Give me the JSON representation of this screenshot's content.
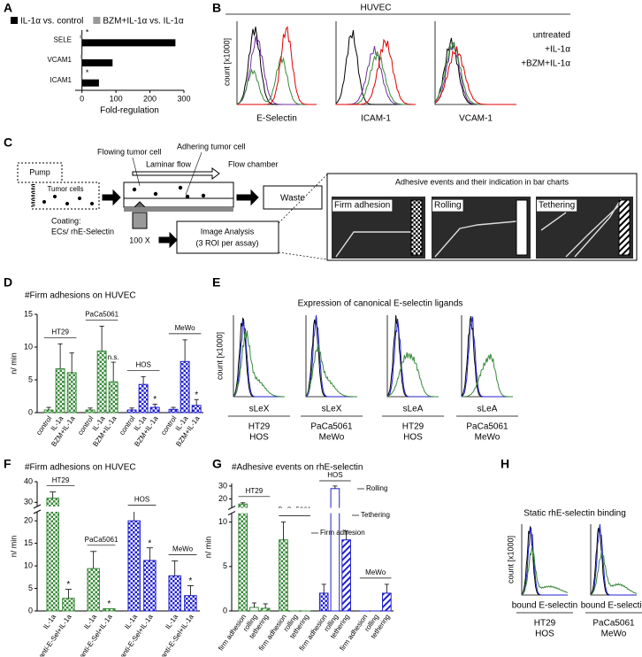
{
  "panel_labels": [
    "A",
    "B",
    "C",
    "D",
    "E",
    "F",
    "G",
    "H"
  ],
  "chart_data": [
    {
      "type": "hbar",
      "xlabel": "Fold-regulation",
      "xlim": [
        -20,
        300
      ],
      "xticks": [
        0,
        100,
        200,
        300
      ],
      "categories": [
        "SELE",
        "VCAM1",
        "ICAM1"
      ],
      "series": [
        {
          "name": "IL-1α vs. control",
          "color": "#000000",
          "values": [
            275,
            90,
            50
          ]
        },
        {
          "name": "BZM+IL-1α vs. IL-1α",
          "color": "#999999",
          "values": [
            -6,
            -4,
            -3
          ],
          "markers": [
            "*",
            null,
            "*"
          ]
        }
      ]
    },
    {
      "type": "grouped_bar",
      "title": "#Firm adhesions on HUVEC",
      "ylabel": "n/ min",
      "ylim": [
        0,
        15
      ],
      "yticks": [
        0,
        5,
        10,
        15
      ],
      "series": [
        {
          "name": "HT29",
          "color": "#3a8a3a",
          "categories": [
            "control",
            "IL-1a",
            "BZM+IL-1a"
          ],
          "values": [
            0.4,
            6.7,
            6.1
          ],
          "errors": [
            0.4,
            3.8,
            3.0
          ],
          "markers": [
            null,
            null,
            null
          ],
          "patterns": [
            "checker",
            "checker",
            "checker"
          ]
        },
        {
          "name": "PaCa5061",
          "color": "#3a8a3a",
          "categories": [
            "control",
            "IL-1a",
            "BZM+IL-1a"
          ],
          "values": [
            0.4,
            9.4,
            4.7
          ],
          "errors": [
            0.3,
            3.8,
            3.0
          ],
          "markers": [
            null,
            null,
            "n.s."
          ],
          "patterns": [
            "checker",
            "checker",
            "checker"
          ]
        },
        {
          "name": "HOS",
          "color": "#2020d0",
          "categories": [
            "control",
            "IL-1a",
            "BZM+IL-1a"
          ],
          "values": [
            0.4,
            4.3,
            0.8
          ],
          "errors": [
            0.3,
            1.2,
            0.5
          ],
          "markers": [
            null,
            null,
            "*"
          ],
          "patterns": [
            "checker",
            "checker",
            "checker"
          ]
        },
        {
          "name": "MeWo",
          "color": "#2020d0",
          "categories": [
            "control",
            "IL-1a",
            "BZM+IL-1a"
          ],
          "values": [
            0.5,
            7.8,
            1.1
          ],
          "errors": [
            0.3,
            3.3,
            0.9
          ],
          "markers": [
            null,
            null,
            "*"
          ],
          "patterns": [
            "checker",
            "checker",
            "checker"
          ]
        }
      ]
    },
    {
      "type": "grouped_bar",
      "title": "#Firm adhesions on HUVEC",
      "ylabel": "n/ min",
      "ylim": [
        0,
        40
      ],
      "ybreak": [
        22,
        28
      ],
      "yticks": [
        0,
        5,
        10,
        15,
        20,
        30,
        40
      ],
      "series": [
        {
          "name": "HT29",
          "color": "#3a8a3a",
          "categories": [
            "IL-1a",
            "anti-E-Sel+IL-1a"
          ],
          "values": [
            32,
            2.8
          ],
          "errors": [
            3,
            2
          ],
          "markers": [
            null,
            "*"
          ],
          "patterns": [
            "checker",
            "checker"
          ]
        },
        {
          "name": "PaCa5061",
          "color": "#3a8a3a",
          "categories": [
            "IL-1a",
            "anti-E-Sel+IL-1a"
          ],
          "values": [
            9.4,
            0.5
          ],
          "errors": [
            3.8,
            0
          ],
          "markers": [
            null,
            "*"
          ],
          "patterns": [
            "checker",
            "checker"
          ]
        },
        {
          "name": "HOS",
          "color": "#2020d0",
          "categories": [
            "IL-1a",
            "anti-E-Sel+IL-1a"
          ],
          "values": [
            20,
            11.2
          ],
          "errors": [
            2.6,
            2.8
          ],
          "markers": [
            null,
            "*"
          ],
          "patterns": [
            "checker",
            "checker"
          ]
        },
        {
          "name": "MeWo",
          "color": "#2020d0",
          "categories": [
            "IL-1a",
            "anti-E-Sel+IL-1a"
          ],
          "values": [
            7.8,
            3.4
          ],
          "errors": [
            3.3,
            2.2
          ],
          "markers": [
            null,
            "*"
          ],
          "patterns": [
            "checker",
            "checker"
          ]
        }
      ]
    },
    {
      "type": "grouped_bar",
      "title": "#Adhesive events on rhE-selectin",
      "ylabel": "n/ min",
      "ylim": [
        0,
        32
      ],
      "ybreak": [
        11,
        13
      ],
      "yticks": [
        0,
        5,
        10,
        20,
        30
      ],
      "annotations": [
        "Firm adhesion",
        "Rolling",
        "Tethering"
      ],
      "series": [
        {
          "name": "HT29",
          "color": "#3a8a3a",
          "categories": [
            "firm adhesion",
            "rolling",
            "tethering"
          ],
          "values": [
            16,
            0.4,
            0.3
          ],
          "errors": [
            1,
            0.5,
            0.5
          ],
          "patterns": [
            "checker",
            "none",
            "hatch"
          ]
        },
        {
          "name": "PaCa5061",
          "color": "#3a8a3a",
          "categories": [
            "firm adhesion",
            "rolling",
            "tethering"
          ],
          "values": [
            8,
            0,
            0
          ],
          "errors": [
            2,
            0,
            0
          ],
          "patterns": [
            "checker",
            "none",
            "hatch"
          ]
        },
        {
          "name": "HOS",
          "color": "#2020d0",
          "categories": [
            "firm adhesion",
            "rolling",
            "tethering"
          ],
          "values": [
            2,
            28,
            8
          ],
          "errors": [
            1,
            2,
            1
          ],
          "patterns": [
            "checker",
            "none",
            "hatch"
          ]
        },
        {
          "name": "MeWo",
          "color": "#2020d0",
          "categories": [
            "firm adhesion",
            "rolling",
            "tethering"
          ],
          "values": [
            0,
            0,
            2
          ],
          "errors": [
            0,
            0,
            1
          ],
          "patterns": [
            "checker",
            "none",
            "hatch"
          ]
        }
      ]
    }
  ],
  "panel_B": {
    "title": "HUVEC",
    "ylabel": "count [x1000]",
    "plots": [
      "E-Selectin",
      "ICAM-1",
      "VCAM-1"
    ],
    "legend": [
      {
        "name": "untreated",
        "color": "#7030a0"
      },
      {
        "name": "+IL-1α",
        "color": "#e00000"
      },
      {
        "name": "+BZM+IL-1α",
        "color": "#3a8a3a"
      }
    ]
  },
  "panel_C": {
    "pump": "Pump",
    "tumor_cells": "Tumor cells",
    "flowing": "Flowing tumor cell",
    "adhering": "Adhering tumor cell",
    "laminar": "Laminar flow",
    "chamber": "Flow chamber",
    "waste": "Waste",
    "coating": "Coating:",
    "coating_detail": "ECs/ rhE-Selectin",
    "magnification": "100 X",
    "analysis": "Image Analysis",
    "analysis_detail": "(3 ROI per assay)",
    "events_title": "Adhesive events and their indication in bar charts",
    "events": [
      "Firm adhesion",
      "Rolling",
      "Tethering"
    ]
  },
  "panel_E": {
    "title": "Expression of canonical E-selectin ligands",
    "ylabel": "count [x1000]",
    "plots": [
      {
        "marker": "sLeX",
        "lines": [
          {
            "name": "HT29",
            "color": "#3a8a3a"
          },
          {
            "name": "HOS",
            "color": "#2020d0"
          }
        ]
      },
      {
        "marker": "sLeX",
        "lines": [
          {
            "name": "PaCa5061",
            "color": "#3a8a3a"
          },
          {
            "name": "MeWo",
            "color": "#2020d0"
          }
        ]
      },
      {
        "marker": "sLeA",
        "lines": [
          {
            "name": "HT29",
            "color": "#3a8a3a"
          },
          {
            "name": "HOS",
            "color": "#2020d0"
          }
        ]
      },
      {
        "marker": "sLeA",
        "lines": [
          {
            "name": "PaCa5061",
            "color": "#3a8a3a"
          },
          {
            "name": "MeWo",
            "color": "#2020d0"
          }
        ]
      }
    ]
  },
  "panel_H": {
    "title": "Static rhE-selectin binding",
    "ylabel": "count [x1000]",
    "plots": [
      {
        "marker": "bound E-selectin",
        "lines": [
          {
            "name": "HT29",
            "color": "#3a8a3a"
          },
          {
            "name": "HOS",
            "color": "#2020d0"
          }
        ]
      },
      {
        "marker": "bound E-selectin",
        "lines": [
          {
            "name": "PaCa5061",
            "color": "#3a8a3a"
          },
          {
            "name": "MeWo",
            "color": "#2020d0"
          }
        ]
      }
    ]
  }
}
